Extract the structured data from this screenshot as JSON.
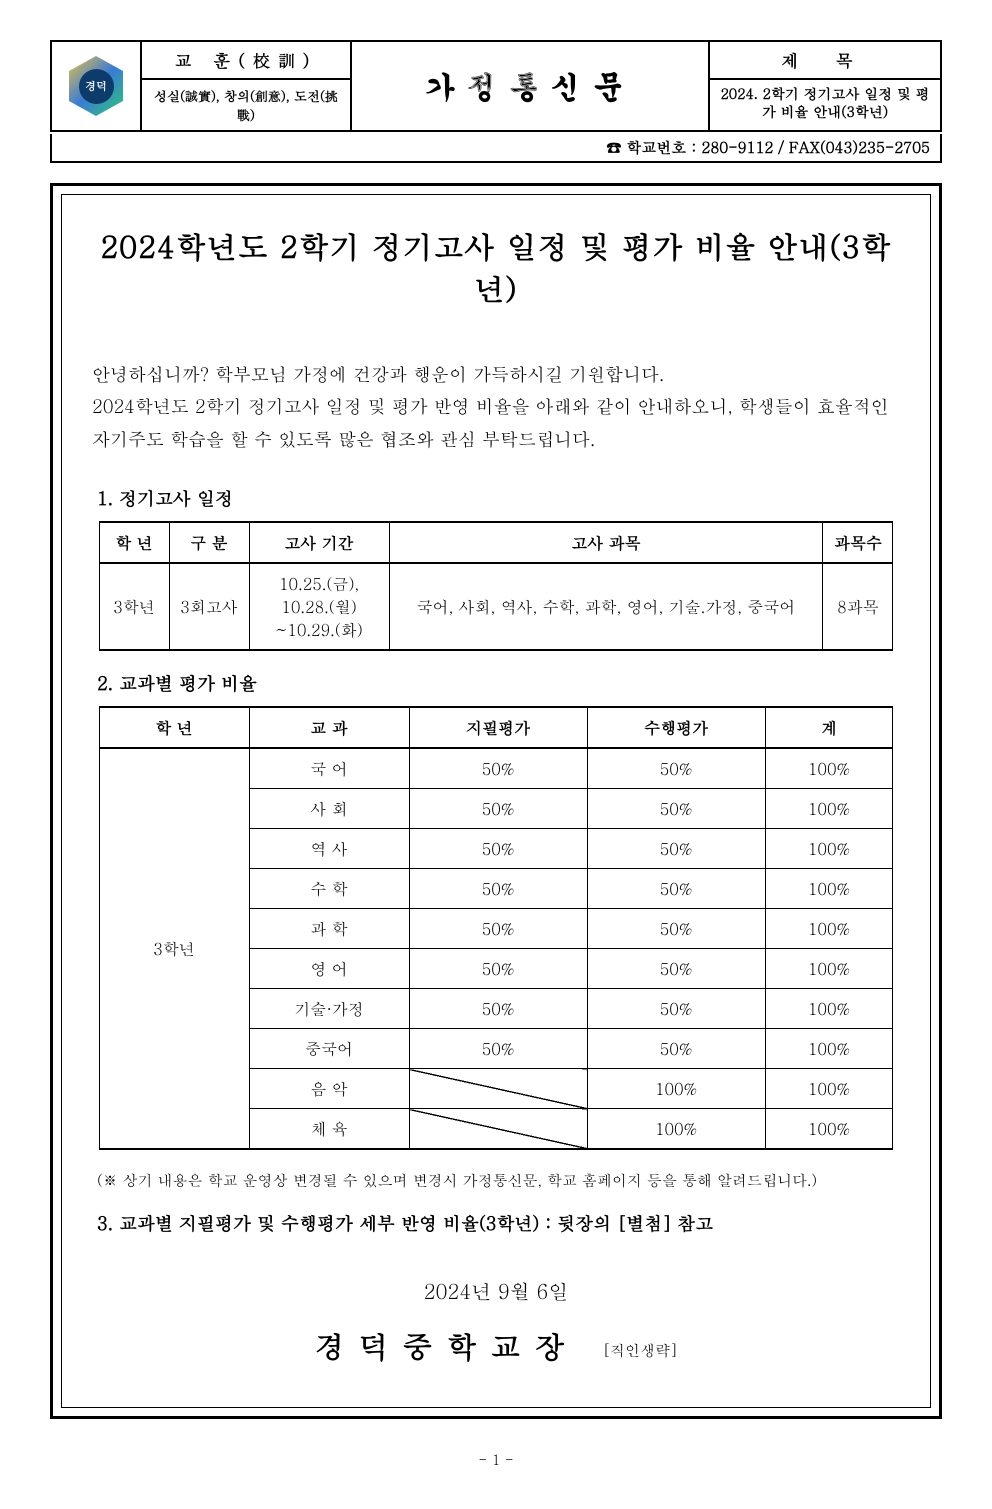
{
  "header": {
    "logo_inner": "경덕",
    "motto_label": "교 훈(校訓)",
    "motto_text": "성실(誠實), 창의(創意), 도전(挑戰)",
    "center_title": "가정통신문",
    "title_label": "제 목",
    "title_sub": "2024. 2학기 정기고사 일정 및 평가 비율 안내(3학년)",
    "contact": "☎ 학교번호 : 280-9112 / FAX(043)235-2705"
  },
  "main_title": "2024학년도 2학기 정기고사 일정 및 평가 비율 안내(3학년)",
  "intro_lines": [
    "안녕하십니까? 학부모님 가정에 건강과 행운이 가득하시길 기원합니다.",
    "2024학년도 2학기 정기고사 일정 및 평가 반영 비율을 아래와 같이 안내하오니, 학생들이 효율적인 자기주도 학습을 할 수 있도록 많은 협조와 관심 부탁드립니다."
  ],
  "sections": {
    "s1": "1. 정기고사 일정",
    "s2": "2. 교과별 평가 비율",
    "s3": "3. 교과별 지필평가 및 수행평가 세부 반영 비율(3학년) : 뒷장의 [별첨] 참고"
  },
  "schedule": {
    "columns": [
      "학 년",
      "구 분",
      "고사 기간",
      "고사 과목",
      "과목수"
    ],
    "row": {
      "grade": "3학년",
      "gubun": "3회고사",
      "period": "10.25.(금),\n10.28.(월)\n~10.29.(화)",
      "subjects": "국어, 사회, 역사, 수학, 과학, 영어, 기술.가정, 중국어",
      "count": "8과목"
    },
    "col_widths": [
      "70px",
      "80px",
      "140px",
      "auto",
      "70px"
    ]
  },
  "ratio": {
    "columns": [
      "학 년",
      "교 과",
      "지필평가",
      "수행평가",
      "계"
    ],
    "grade_label": "3학년",
    "rows": [
      {
        "subject": "국 어",
        "written": "50%",
        "perf": "50%",
        "total": "100%"
      },
      {
        "subject": "사 회",
        "written": "50%",
        "perf": "50%",
        "total": "100%"
      },
      {
        "subject": "역 사",
        "written": "50%",
        "perf": "50%",
        "total": "100%"
      },
      {
        "subject": "수 학",
        "written": "50%",
        "perf": "50%",
        "total": "100%"
      },
      {
        "subject": "과 학",
        "written": "50%",
        "perf": "50%",
        "total": "100%"
      },
      {
        "subject": "영 어",
        "written": "50%",
        "perf": "50%",
        "total": "100%"
      },
      {
        "subject": "기술·가정",
        "written": "50%",
        "perf": "50%",
        "total": "100%"
      },
      {
        "subject": "중국어",
        "written": "50%",
        "perf": "50%",
        "total": "100%"
      },
      {
        "subject": "음 악",
        "written": "",
        "perf": "100%",
        "total": "100%"
      },
      {
        "subject": "체 육",
        "written": "",
        "perf": "100%",
        "total": "100%"
      }
    ]
  },
  "note": "(※ 상기 내용은 학교 운영상 변경될 수 있으며 변경시 가정통신문, 학교 홈페이지 등을 통해 알려드립니다.)",
  "closing_date": "2024년  9월  6일",
  "signature_main": "경덕중학교장",
  "signature_small": "[직인생략]",
  "pagenum": "- 1 -",
  "colors": {
    "border": "#000000",
    "bg": "#ffffff",
    "text": "#000000"
  }
}
